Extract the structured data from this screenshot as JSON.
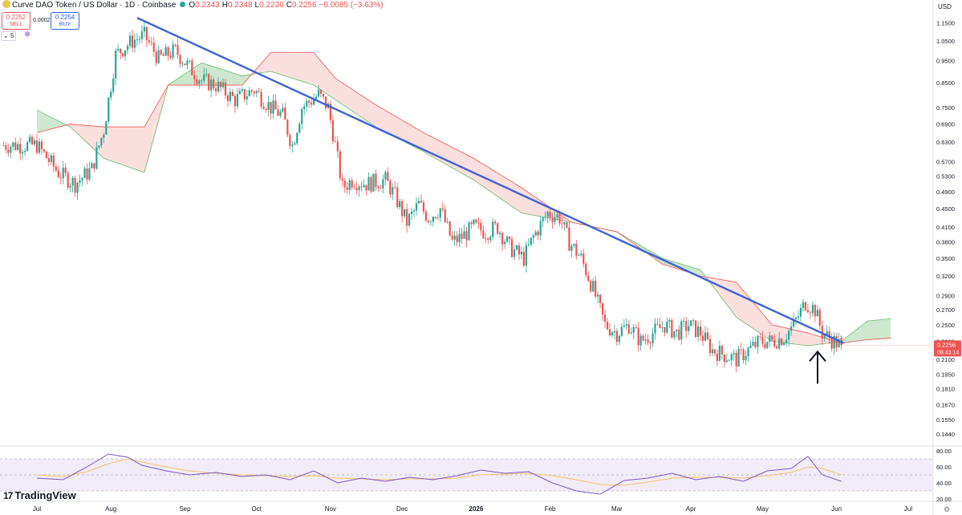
{
  "header": {
    "title": "Curve DAO Token / US Dollar · 1D · Coinbase",
    "o_label": "O",
    "o_value": "0.2343",
    "h_label": "H",
    "h_value": "0.2348",
    "l_label": "L",
    "l_value": "0.2236",
    "c_label": "C",
    "c_value": "0.2256",
    "change": "−0.0085 (−3.63%)"
  },
  "trade": {
    "sell_price": "0.2252",
    "sell_label": "SELL",
    "spread": "0.0002",
    "buy_price": "0.2254",
    "buy_label": "BUY"
  },
  "toolbar": {
    "interval_count": "5"
  },
  "currency": "USD",
  "price_tag": {
    "price": "0.2256",
    "countdown": "08:43:14"
  },
  "branding": "TradingView",
  "colors": {
    "up": "#26a69a",
    "down": "#ef5350",
    "trendline": "#3d62d9",
    "cloud_bull": "#a5d6a7",
    "cloud_bear": "#f8c4c4",
    "rsi": "#7e57c2",
    "rsi_ma": "#f3c36b",
    "rsi_band": "#ede7f6"
  },
  "chart_data": [
    {
      "type": "candlestick",
      "title": "Curve DAO Token / US Dollar · 1D · Coinbase",
      "y_scale": "log",
      "ylim": [
        0.14,
        1.22
      ],
      "y_ticks": [
        "1.1500",
        "1.0500",
        "0.9500",
        "0.8500",
        "0.7500",
        "0.6900",
        "0.6300",
        "0.5700",
        "0.5300",
        "0.4900",
        "0.4500",
        "0.4100",
        "0.3800",
        "0.3500",
        "0.3200",
        "0.2900",
        "0.2700",
        "0.2500",
        "0.2300",
        "0.2100",
        "0.1950",
        "0.1810",
        "0.1670",
        "0.1550",
        "0.1440"
      ],
      "x_ticks": [
        "Jul",
        "Aug",
        "Sep",
        "Oct",
        "Nov",
        "Dec",
        "2026",
        "Feb",
        "Mar",
        "Apr",
        "May",
        "Jun",
        "Jul"
      ],
      "close_path": [
        [
          "2025-07-01",
          0.62
        ],
        [
          "2025-07-10",
          0.54
        ],
        [
          "2025-07-17",
          0.51
        ],
        [
          "2025-07-24",
          0.55
        ],
        [
          "2025-07-29",
          0.67
        ],
        [
          "2025-08-03",
          0.98
        ],
        [
          "2025-08-10",
          1.05
        ],
        [
          "2025-08-15",
          1.08
        ],
        [
          "2025-08-21",
          0.96
        ],
        [
          "2025-08-28",
          1.0
        ],
        [
          "2025-09-02",
          0.93
        ],
        [
          "2025-09-08",
          0.86
        ],
        [
          "2025-09-14",
          0.84
        ],
        [
          "2025-09-22",
          0.78
        ],
        [
          "2025-09-30",
          0.82
        ],
        [
          "2025-10-07",
          0.75
        ],
        [
          "2025-10-12",
          0.72
        ],
        [
          "2025-10-16",
          0.62
        ],
        [
          "2025-10-20",
          0.75
        ],
        [
          "2025-10-27",
          0.8
        ],
        [
          "2025-10-31",
          0.75
        ],
        [
          "2025-11-03",
          0.62
        ],
        [
          "2025-11-06",
          0.5
        ],
        [
          "2025-11-10",
          0.52
        ],
        [
          "2025-11-16",
          0.51
        ],
        [
          "2025-11-24",
          0.52
        ],
        [
          "2025-11-28",
          0.48
        ],
        [
          "2025-12-03",
          0.42
        ],
        [
          "2025-12-08",
          0.46
        ],
        [
          "2025-12-12",
          0.43
        ],
        [
          "2025-12-17",
          0.45
        ],
        [
          "2025-12-22",
          0.38
        ],
        [
          "2025-12-26",
          0.39
        ],
        [
          "2025-12-31",
          0.41
        ],
        [
          "2026-01-05",
          0.4
        ],
        [
          "2026-01-10",
          0.41
        ],
        [
          "2026-01-15",
          0.37
        ],
        [
          "2026-01-21",
          0.35
        ],
        [
          "2026-01-25",
          0.39
        ],
        [
          "2026-01-31",
          0.44
        ],
        [
          "2026-02-05",
          0.43
        ],
        [
          "2026-02-09",
          0.38
        ],
        [
          "2026-02-14",
          0.35
        ],
        [
          "2026-02-19",
          0.3
        ],
        [
          "2026-02-24",
          0.25
        ],
        [
          "2026-03-01",
          0.24
        ],
        [
          "2026-03-06",
          0.25
        ],
        [
          "2026-03-11",
          0.23
        ],
        [
          "2026-03-16",
          0.24
        ],
        [
          "2026-03-21",
          0.25
        ],
        [
          "2026-03-26",
          0.24
        ],
        [
          "2026-03-31",
          0.25
        ],
        [
          "2026-04-05",
          0.24
        ],
        [
          "2026-04-10",
          0.22
        ],
        [
          "2026-04-15",
          0.215
        ],
        [
          "2026-04-20",
          0.21
        ],
        [
          "2026-04-25",
          0.22
        ],
        [
          "2026-04-30",
          0.23
        ],
        [
          "2026-05-05",
          0.23
        ],
        [
          "2026-05-10",
          0.235
        ],
        [
          "2026-05-14",
          0.25
        ],
        [
          "2026-05-19",
          0.28
        ],
        [
          "2026-05-23",
          0.27
        ],
        [
          "2026-05-26",
          0.24
        ],
        [
          "2026-05-31",
          0.23
        ],
        [
          "2026-06-03",
          0.2256
        ]
      ],
      "last_candle": {
        "open": 0.2343,
        "high": 0.2348,
        "low": 0.2236,
        "close": 0.2256
      },
      "ichimoku_cloud": {
        "span_a": [
          [
            "2025-07-01",
            0.74
          ],
          [
            "2025-07-15",
            0.68
          ],
          [
            "2025-07-29",
            0.58
          ],
          [
            "2025-08-15",
            0.54
          ],
          [
            "2025-08-25",
            0.84
          ],
          [
            "2025-09-08",
            0.94
          ],
          [
            "2025-09-25",
            0.88
          ],
          [
            "2025-10-07",
            0.9
          ],
          [
            "2025-10-25",
            0.84
          ],
          [
            "2025-11-03",
            0.78
          ],
          [
            "2025-11-20",
            0.68
          ],
          [
            "2025-12-10",
            0.6
          ],
          [
            "2025-12-31",
            0.52
          ],
          [
            "2026-01-20",
            0.44
          ],
          [
            "2026-02-10",
            0.42
          ],
          [
            "2026-03-01",
            0.4
          ],
          [
            "2026-03-20",
            0.35
          ],
          [
            "2026-04-05",
            0.33
          ],
          [
            "2026-04-20",
            0.26
          ],
          [
            "2026-05-05",
            0.23
          ],
          [
            "2026-05-20",
            0.225
          ],
          [
            "2026-06-03",
            0.23
          ],
          [
            "2026-06-14",
            0.255
          ],
          [
            "2026-06-24",
            0.258
          ]
        ],
        "span_b": [
          [
            "2025-07-01",
            0.66
          ],
          [
            "2025-07-15",
            0.69
          ],
          [
            "2025-07-29",
            0.68
          ],
          [
            "2025-08-15",
            0.68
          ],
          [
            "2025-08-25",
            0.84
          ],
          [
            "2025-09-08",
            0.84
          ],
          [
            "2025-09-25",
            0.84
          ],
          [
            "2025-10-07",
            0.99
          ],
          [
            "2025-10-25",
            0.99
          ],
          [
            "2025-11-03",
            0.87
          ],
          [
            "2025-11-20",
            0.76
          ],
          [
            "2025-12-10",
            0.66
          ],
          [
            "2025-12-31",
            0.58
          ],
          [
            "2026-01-20",
            0.5
          ],
          [
            "2026-02-10",
            0.42
          ],
          [
            "2026-03-01",
            0.4
          ],
          [
            "2026-03-20",
            0.34
          ],
          [
            "2026-04-05",
            0.32
          ],
          [
            "2026-04-20",
            0.31
          ],
          [
            "2026-05-05",
            0.25
          ],
          [
            "2026-05-20",
            0.24
          ],
          [
            "2026-06-03",
            0.228
          ],
          [
            "2026-06-14",
            0.232
          ],
          [
            "2026-06-24",
            0.234
          ]
        ]
      },
      "trendline": [
        [
          "2025-08-12",
          1.18
        ],
        [
          "2026-06-04",
          0.228
        ]
      ],
      "annotation": "arrow pointing up below the last candle"
    },
    {
      "type": "line",
      "indicator": "RSI",
      "ylim": [
        20,
        80
      ],
      "y_ticks": [
        "80.00",
        "60.00",
        "40.00",
        "20.00"
      ],
      "band": [
        30,
        70
      ],
      "midline": 50,
      "x": [
        "2025-07-01",
        "2025-07-12",
        "2025-07-22",
        "2025-07-31",
        "2025-08-08",
        "2025-08-14",
        "2025-08-24",
        "2025-09-03",
        "2025-09-14",
        "2025-09-25",
        "2025-10-05",
        "2025-10-15",
        "2025-10-25",
        "2025-11-04",
        "2025-11-14",
        "2025-11-24",
        "2025-12-04",
        "2025-12-14",
        "2025-12-24",
        "2026-01-03",
        "2026-01-13",
        "2026-01-23",
        "2026-02-02",
        "2026-02-12",
        "2026-02-22",
        "2026-03-04",
        "2026-03-14",
        "2026-03-24",
        "2026-04-03",
        "2026-04-13",
        "2026-04-23",
        "2026-05-03",
        "2026-05-13",
        "2026-05-20",
        "2026-05-26",
        "2026-06-03"
      ],
      "rsi": [
        46,
        44,
        60,
        76,
        72,
        62,
        55,
        50,
        53,
        48,
        50,
        44,
        55,
        40,
        46,
        42,
        47,
        44,
        49,
        56,
        52,
        54,
        40,
        30,
        26,
        43,
        46,
        52,
        44,
        48,
        42,
        55,
        58,
        73,
        50,
        42
      ],
      "rsi_ma": [
        50,
        48,
        54,
        64,
        70,
        66,
        60,
        55,
        52,
        50,
        49,
        48,
        49,
        46,
        45,
        44,
        45,
        45,
        46,
        50,
        51,
        52,
        49,
        44,
        38,
        37,
        41,
        46,
        47,
        47,
        46,
        49,
        53,
        60,
        58,
        50
      ]
    }
  ]
}
